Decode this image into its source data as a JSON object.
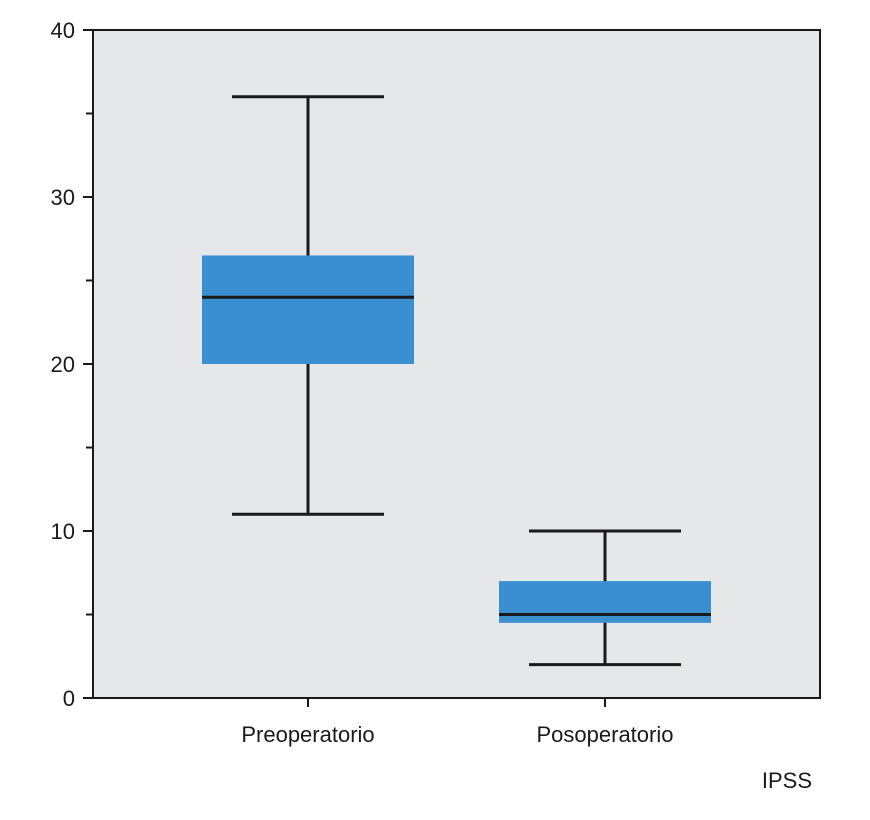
{
  "chart_data": {
    "type": "box",
    "title": "",
    "xlabel": "",
    "ylabel": "",
    "annotation": "IPSS",
    "ylim": [
      0,
      40
    ],
    "yticks": [
      0,
      10,
      20,
      30,
      40
    ],
    "y_minor_step": 5,
    "grid": false,
    "colors": {
      "box_fill": "#3a8fd1",
      "plot_bg": "#e6e7e9",
      "line": "#1a1a1a"
    },
    "categories": [
      "Preoperatorio",
      "Posoperatorio"
    ],
    "boxes": [
      {
        "category": "Preoperatorio",
        "min": 11,
        "q1": 20,
        "median": 24,
        "q3": 26.5,
        "max": 36
      },
      {
        "category": "Posoperatorio",
        "min": 2,
        "q1": 4.5,
        "median": 5,
        "q3": 7,
        "max": 10
      }
    ]
  }
}
